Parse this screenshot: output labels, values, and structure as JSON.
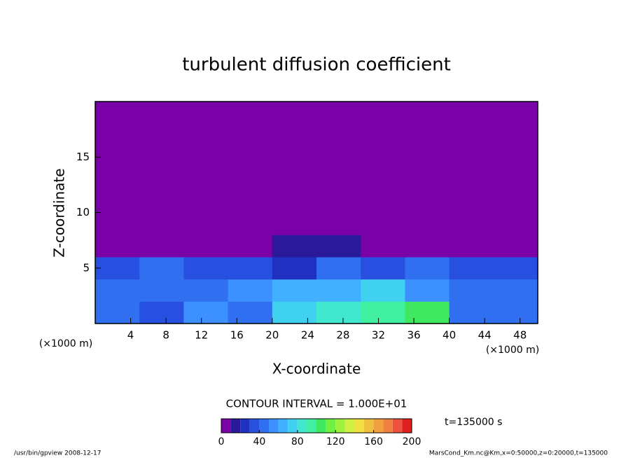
{
  "chart_data": {
    "type": "contour",
    "title": "turbulent diffusion coefficient",
    "xlabel": "X-coordinate",
    "ylabel": "Z-coordinate",
    "x_unit": "(×1000 m)",
    "y_unit": "(×1000 m)",
    "xlim": [
      0,
      50
    ],
    "ylim": [
      0,
      20
    ],
    "xticks": [
      4,
      8,
      12,
      16,
      20,
      24,
      28,
      32,
      36,
      40,
      44,
      48
    ],
    "yticks": [
      5,
      10,
      15
    ],
    "x_edges": [
      0,
      5,
      10,
      15,
      20,
      25,
      30,
      35,
      40,
      45,
      50
    ],
    "z_edges": [
      0,
      2,
      4,
      6,
      8,
      20
    ],
    "values": [
      [
        40,
        30,
        50,
        40,
        70,
        80,
        90,
        100,
        40,
        40
      ],
      [
        40,
        40,
        40,
        50,
        60,
        60,
        70,
        50,
        40,
        40
      ],
      [
        30,
        40,
        30,
        30,
        20,
        40,
        30,
        40,
        30,
        30
      ],
      [
        5,
        5,
        5,
        5,
        10,
        10,
        5,
        5,
        5,
        5
      ],
      [
        0,
        0,
        0,
        0,
        0,
        0,
        0,
        0,
        0,
        0
      ]
    ],
    "contour_interval": "CONTOUR INTERVAL = 1.000E+01",
    "time_label": "t=135000 s",
    "colorbar": {
      "levels": [
        0,
        10,
        20,
        30,
        40,
        50,
        60,
        70,
        80,
        90,
        100,
        110,
        120,
        130,
        140,
        150,
        160,
        170,
        180,
        190,
        200
      ],
      "colors": [
        "#7a00a8",
        "#2a1a9a",
        "#2030c0",
        "#2850e0",
        "#3070f0",
        "#3c90ff",
        "#40b0ff",
        "#40d0f0",
        "#40e8d0",
        "#40f0a0",
        "#40e860",
        "#70f040",
        "#a0f040",
        "#d0f040",
        "#f0e040",
        "#f0c040",
        "#f0a040",
        "#f08040",
        "#f05040",
        "#e02020"
      ],
      "ticks": [
        0,
        40,
        80,
        120,
        160,
        200
      ]
    },
    "footer_left": "/usr/bin/gpview  2008-12-17",
    "footer_right": "MarsCond_Km.nc@Km,x=0:50000,z=0:20000,t=135000"
  }
}
